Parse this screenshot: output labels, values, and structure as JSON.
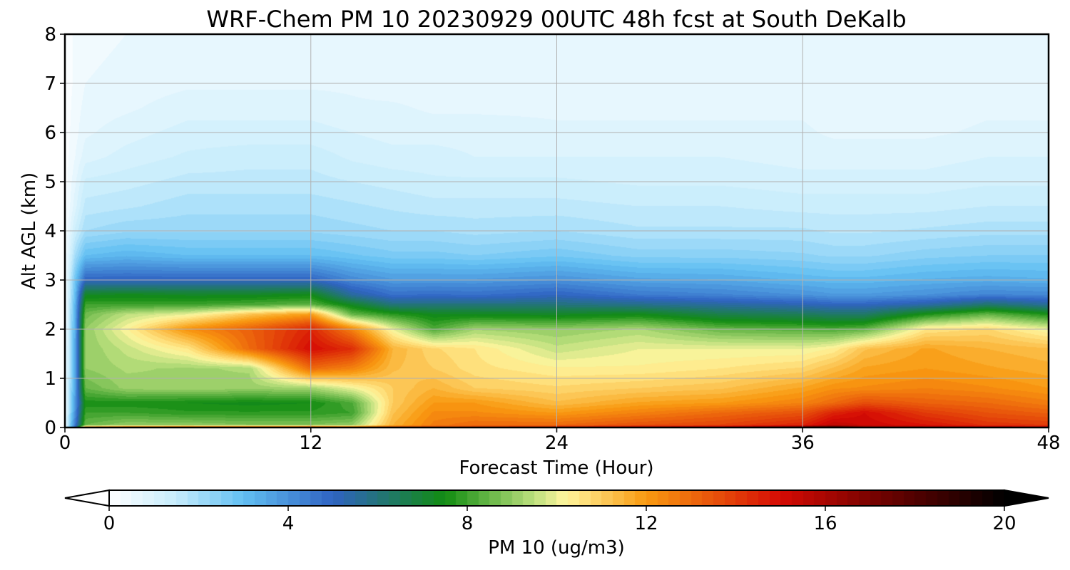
{
  "chart_data": {
    "type": "heatmap",
    "title": "WRF-Chem PM 10  20230929 00UTC 48h fcst at South DeKalb",
    "xlabel": "Forecast Time (Hour)",
    "ylabel": "Alt AGL (km)",
    "xlim": [
      0,
      48
    ],
    "ylim": [
      0,
      8
    ],
    "xticks": [
      0,
      12,
      24,
      36,
      48
    ],
    "yticks": [
      0,
      1,
      2,
      3,
      4,
      5,
      6,
      7,
      8
    ],
    "grid": true,
    "colorbar": {
      "label": "PM 10  (ug/m3)",
      "min": 0,
      "max": 20,
      "ticks": [
        0,
        4,
        8,
        12,
        16,
        20
      ],
      "extend": "both",
      "orientation": "horizontal",
      "placement": "bottom"
    },
    "colormap_stops": [
      {
        "v": 0,
        "color": "#ffffff"
      },
      {
        "v": 1.5,
        "color": "#c6ecfc"
      },
      {
        "v": 3,
        "color": "#62bff2"
      },
      {
        "v": 5,
        "color": "#2f63c2"
      },
      {
        "v": 7.5,
        "color": "#118c11"
      },
      {
        "v": 9.5,
        "color": "#bde07e"
      },
      {
        "v": 10.2,
        "color": "#fff59d"
      },
      {
        "v": 12,
        "color": "#f99a10"
      },
      {
        "v": 15,
        "color": "#d60b04"
      },
      {
        "v": 17,
        "color": "#7a0200"
      },
      {
        "v": 20,
        "color": "#000000"
      }
    ],
    "profile_heights_km": [
      0,
      0.05,
      0.3,
      0.5,
      0.8,
      1.2,
      1.6,
      2.0,
      2.3,
      2.5,
      2.7,
      3.0,
      3.5,
      4.0,
      4.5,
      5.0,
      5.5,
      6.0,
      6.5,
      7.0,
      8.0
    ],
    "profiles": [
      {
        "hour": 0,
        "values": [
          0.5,
          0.4,
          0.3,
          0.3,
          0.3,
          0.2,
          0.2,
          0.2,
          0.2,
          0.2,
          0.2,
          0.2,
          0.2,
          0.2,
          0.1,
          0.1,
          0.1,
          0.1,
          0.1,
          0.1,
          0.1
        ]
      },
      {
        "hour": 0.5,
        "values": [
          5,
          4.5,
          4,
          3.8,
          3.6,
          3.5,
          3.5,
          3.4,
          3.3,
          3.2,
          3,
          2.8,
          2,
          1.3,
          0.9,
          0.7,
          0.5,
          0.4,
          0.35,
          0.3,
          0.3
        ]
      },
      {
        "hour": 1,
        "values": [
          13,
          8.5,
          8,
          7.6,
          8.5,
          9,
          9,
          9,
          8.6,
          8,
          7.2,
          5,
          3,
          2,
          1.6,
          1.3,
          0.9,
          0.7,
          0.6,
          0.5,
          0.4
        ]
      },
      {
        "hour": 3,
        "values": [
          14,
          9,
          8,
          7.6,
          9.1,
          9.3,
          9.6,
          10.2,
          9.5,
          8,
          7.3,
          5,
          3.2,
          2.2,
          1.7,
          1.4,
          1.1,
          0.9,
          0.7,
          0.6,
          0.5
        ]
      },
      {
        "hour": 6,
        "values": [
          14.5,
          9,
          7.8,
          7.5,
          9.2,
          9.2,
          10.5,
          12.2,
          10,
          8,
          7.2,
          5,
          3,
          2.2,
          1.9,
          1.6,
          1.3,
          1.1,
          0.9,
          0.7,
          0.5
        ]
      },
      {
        "hour": 9,
        "values": [
          14.5,
          8.8,
          7.8,
          7.4,
          9.1,
          9.3,
          13,
          13.2,
          11.2,
          8.2,
          7.2,
          5,
          3,
          2.2,
          1.9,
          1.6,
          1.4,
          1.1,
          0.9,
          0.7,
          0.5
        ]
      },
      {
        "hour": 12,
        "values": [
          15,
          8.8,
          7.8,
          7.5,
          9.2,
          13,
          15,
          14.5,
          12,
          8.4,
          7.4,
          5,
          3,
          2.2,
          1.9,
          1.6,
          1.4,
          1.1,
          0.9,
          0.7,
          0.5
        ]
      },
      {
        "hour": 14,
        "values": [
          14,
          9,
          8,
          8.2,
          10,
          12.5,
          14.3,
          12.5,
          8.5,
          7.2,
          5.5,
          4.2,
          2.8,
          2.1,
          1.8,
          1.5,
          1.2,
          1,
          0.8,
          0.7,
          0.5
        ]
      },
      {
        "hour": 16,
        "values": [
          14,
          11.5,
          11.2,
          11,
          11,
          11.3,
          11.5,
          10,
          7.8,
          6,
          4.7,
          3.8,
          2.6,
          2,
          1.7,
          1.4,
          1.1,
          0.9,
          0.8,
          0.6,
          0.5
        ]
      },
      {
        "hour": 18,
        "values": [
          14,
          12.6,
          12.3,
          12,
          11.5,
          11,
          10.8,
          8.2,
          7.3,
          6,
          4.8,
          3.8,
          2.6,
          2,
          1.6,
          1.3,
          1.1,
          0.9,
          0.7,
          0.6,
          0.5
        ]
      },
      {
        "hour": 20,
        "values": [
          14,
          13,
          12.3,
          12,
          11,
          10.6,
          10.5,
          9.2,
          7.3,
          6,
          4.7,
          3.8,
          2.5,
          1.9,
          1.6,
          1.3,
          1,
          0.9,
          0.7,
          0.6,
          0.5
        ]
      },
      {
        "hour": 24,
        "values": [
          14.8,
          13,
          12,
          11.3,
          10.8,
          10.3,
          9.6,
          9,
          7.2,
          6,
          5,
          4,
          2.7,
          2,
          1.6,
          1.3,
          1,
          0.8,
          0.7,
          0.6,
          0.5
        ]
      },
      {
        "hour": 28,
        "values": [
          15.5,
          13.5,
          12.5,
          11.8,
          11,
          10.3,
          10,
          9.3,
          7.4,
          5.8,
          4.5,
          3.6,
          2.4,
          1.8,
          1.5,
          1.2,
          1,
          0.8,
          0.7,
          0.6,
          0.5
        ]
      },
      {
        "hour": 32,
        "values": [
          15.8,
          13.8,
          13,
          12,
          11.2,
          10.5,
          10,
          8.5,
          6.7,
          5.5,
          4.3,
          3.5,
          2.4,
          1.8,
          1.5,
          1.2,
          1,
          0.8,
          0.7,
          0.6,
          0.5
        ]
      },
      {
        "hour": 36,
        "values": [
          17.8,
          14.5,
          13.5,
          12.5,
          11.8,
          10.8,
          10,
          8.3,
          6.5,
          5.2,
          4,
          3.2,
          2.3,
          1.8,
          1.4,
          1.1,
          0.9,
          0.8,
          0.7,
          0.6,
          0.5
        ]
      },
      {
        "hour": 37.5,
        "values": [
          19,
          15.5,
          14.5,
          13,
          12.2,
          11.3,
          10.3,
          8.2,
          6.3,
          5,
          3.8,
          3.1,
          2.2,
          1.7,
          1.4,
          1.1,
          0.9,
          0.7,
          0.6,
          0.5,
          0.5
        ]
      },
      {
        "hour": 39,
        "values": [
          16.5,
          15.2,
          15,
          13.6,
          12.3,
          11.8,
          11.2,
          8.4,
          6.3,
          5,
          3.8,
          3.1,
          2.2,
          1.7,
          1.4,
          1.1,
          0.9,
          0.7,
          0.6,
          0.5,
          0.5
        ]
      },
      {
        "hour": 42,
        "values": [
          16,
          14.8,
          14,
          13.2,
          12.5,
          12,
          11.8,
          10.5,
          7.6,
          5.4,
          4,
          3.3,
          2.4,
          1.8,
          1.4,
          1.1,
          0.9,
          0.7,
          0.6,
          0.5,
          0.5
        ]
      },
      {
        "hour": 45,
        "values": [
          15.8,
          14.2,
          13.5,
          13,
          12.3,
          11.8,
          11.5,
          10.8,
          8.5,
          6.2,
          4.3,
          3.4,
          2.5,
          1.9,
          1.5,
          1.2,
          1,
          0.8,
          0.7,
          0.6,
          0.5
        ]
      },
      {
        "hour": 48,
        "values": [
          15.5,
          14,
          13.2,
          12.6,
          12,
          11.6,
          11.3,
          10,
          7.6,
          5.6,
          4.2,
          3.3,
          2.5,
          1.9,
          1.5,
          1.2,
          1,
          0.8,
          0.7,
          0.6,
          0.5
        ]
      }
    ]
  }
}
